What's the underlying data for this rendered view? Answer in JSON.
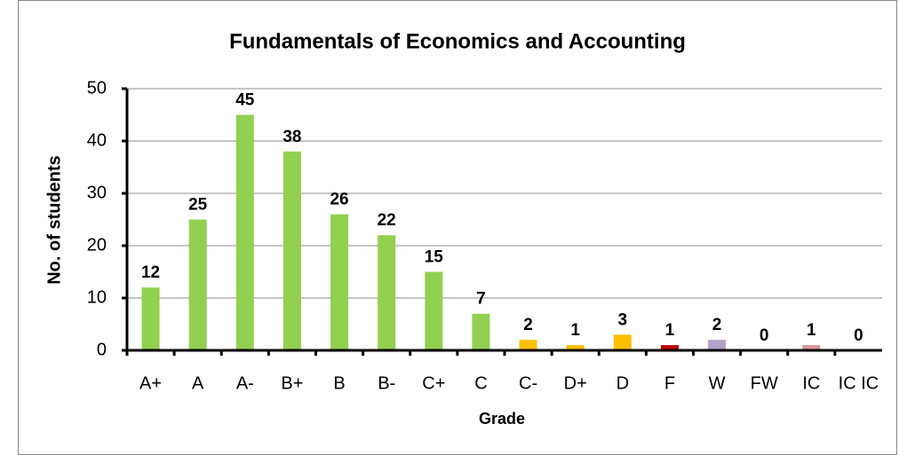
{
  "chart_data": {
    "type": "bar",
    "title": "Fundamentals of  Economics and Accounting",
    "xlabel": "Grade",
    "ylabel": "No. of students",
    "categories": [
      "A+",
      "A",
      "A-",
      "B+",
      "B",
      "B-",
      "C+",
      "C",
      "C-",
      "D+",
      "D",
      "F",
      "W",
      "FW",
      "IC",
      "IC IC"
    ],
    "values": [
      12,
      25,
      45,
      38,
      26,
      22,
      15,
      7,
      2,
      1,
      3,
      1,
      2,
      0,
      1,
      0
    ],
    "colors": [
      "#92d050",
      "#92d050",
      "#92d050",
      "#92d050",
      "#92d050",
      "#92d050",
      "#92d050",
      "#92d050",
      "#ffc000",
      "#ffc000",
      "#ffc000",
      "#c00000",
      "#b3a2c7",
      "#92d050",
      "#d99694",
      "#92d050"
    ],
    "ylim": [
      0,
      50
    ],
    "yticks": [
      0,
      10,
      20,
      30,
      40,
      50
    ],
    "grid": true
  }
}
